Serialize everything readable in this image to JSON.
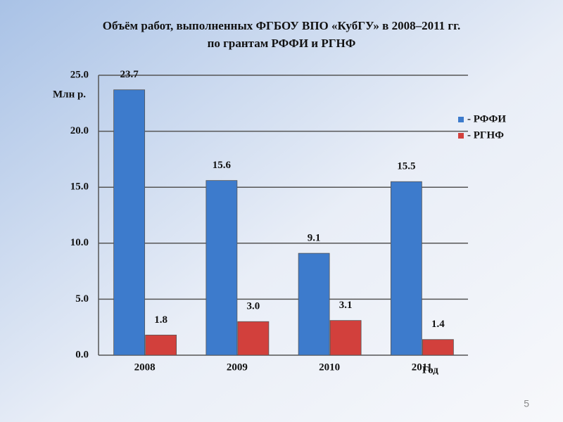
{
  "chart_data": {
    "type": "bar",
    "title": [
      "Объём работ, выполненных ФГБОУ ВПО «КубГУ» в 2008–2011 гг.",
      "по грантам РФФИ и РГНФ"
    ],
    "y_label": "Млн р.",
    "x_label": "Год",
    "categories": [
      "2008",
      "2009",
      "2010",
      "2011"
    ],
    "series": [
      {
        "name": "- РФФИ",
        "color": "#3d7bcc",
        "values": [
          23.7,
          15.6,
          9.1,
          15.5
        ],
        "value_labels": [
          "23.7",
          "15.6",
          "9.1",
          "15.5"
        ]
      },
      {
        "name": "- РГНФ",
        "color": "#d2403c",
        "values": [
          1.8,
          3,
          3.1,
          1.4
        ],
        "value_labels": [
          "1.8",
          "3.0",
          "3.1",
          "1.4"
        ]
      }
    ],
    "ylim": [
      0,
      25
    ],
    "yticks": [
      {
        "value": 0,
        "label": "0.0"
      },
      {
        "value": 5,
        "label": "5.0"
      },
      {
        "value": 10,
        "label": "10.0"
      },
      {
        "value": 15,
        "label": "15.0"
      },
      {
        "value": 20,
        "label": "20.0"
      },
      {
        "value": 25,
        "label": "25.0"
      }
    ],
    "grid": true
  },
  "slide_number": "5"
}
